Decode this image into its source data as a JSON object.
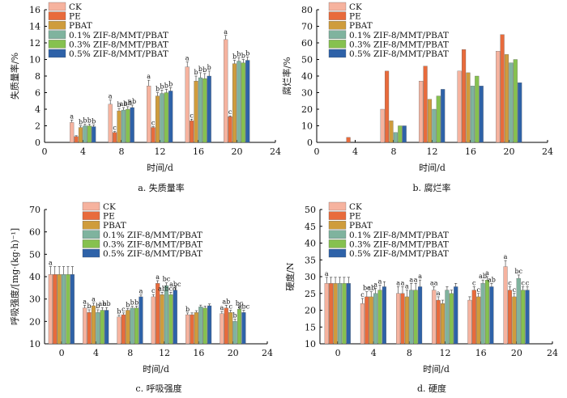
{
  "colors": {
    "CK": "#f6b39f",
    "PE": "#e86b3c",
    "PBAT": "#cf9c3c",
    "0.1% ZIF-8/MMT/PBAT": "#7fb39e",
    "0.3% ZIF-8/MMT/PBAT": "#86c14f",
    "0.5% ZIF-8/MMT/PBAT": "#2e62a8"
  },
  "chart_data": [
    {
      "type": "bar",
      "caption": "a. 失质量率",
      "xlabel": "时间/d",
      "ylabel": "失质量率/%",
      "xticks": [
        "0",
        "4",
        "8",
        "12",
        "16",
        "20",
        "24"
      ],
      "yticks": [
        "0",
        "2",
        "4",
        "6",
        "8",
        "10",
        "12",
        "14",
        "16"
      ],
      "ylim": [
        0,
        16
      ],
      "categories": [
        "4",
        "8",
        "12",
        "16",
        "20"
      ],
      "series": [
        {
          "name": "CK",
          "values": [
            2.4,
            4.6,
            6.8,
            9.1,
            12.4
          ],
          "errors": [
            0.3,
            0.5,
            0.7,
            0.6,
            0.5
          ]
        },
        {
          "name": "PE",
          "values": [
            0.7,
            1.2,
            1.8,
            2.6,
            3.1
          ],
          "errors": [
            0.1,
            0.1,
            0.1,
            0.2,
            0.1
          ]
        },
        {
          "name": "PBAT",
          "values": [
            1.8,
            3.8,
            5.6,
            7.4,
            9.5
          ],
          "errors": [
            0.2,
            0.3,
            0.4,
            0.6,
            0.4
          ]
        },
        {
          "name": "0.1% ZIF-8/MMT/PBAT",
          "values": [
            2.0,
            3.9,
            5.9,
            7.8,
            9.8
          ],
          "errors": [
            0.2,
            0.3,
            0.4,
            0.6,
            0.4
          ]
        },
        {
          "name": "0.3% ZIF-8/MMT/PBAT",
          "values": [
            2.0,
            4.0,
            6.0,
            7.7,
            9.6
          ],
          "errors": [
            0.2,
            0.3,
            0.4,
            0.6,
            0.4
          ]
        },
        {
          "name": "0.5% ZIF-8/MMT/PBAT",
          "values": [
            1.9,
            4.2,
            6.2,
            8.0,
            9.9
          ],
          "errors": [
            0.2,
            0.3,
            0.4,
            0.6,
            0.4
          ]
        }
      ],
      "letters": [
        [
          "a",
          "a",
          "a",
          "a",
          "a"
        ],
        [
          "",
          "c",
          "c",
          "c",
          "c"
        ],
        [
          "b",
          "b",
          "b",
          "b",
          "b"
        ],
        [
          "b",
          "ab",
          "b",
          "b",
          "b"
        ],
        [
          "b",
          "ab",
          "b",
          "b",
          "b"
        ],
        [
          "b",
          "ab",
          "b",
          "b",
          "b"
        ]
      ]
    },
    {
      "type": "bar",
      "caption": "b. 腐烂率",
      "xlabel": "时间/d",
      "ylabel": "腐烂率/%",
      "xticks": [
        "0",
        "4",
        "8",
        "12",
        "16",
        "20",
        "24"
      ],
      "yticks": [
        "0",
        "10",
        "20",
        "30",
        "40",
        "50",
        "60",
        "70",
        "80"
      ],
      "ylim": [
        0,
        80
      ],
      "categories": [
        "4",
        "8",
        "12",
        "16",
        "20"
      ],
      "series": [
        {
          "name": "CK",
          "values": [
            0,
            20,
            37,
            43,
            55
          ]
        },
        {
          "name": "PE",
          "values": [
            3,
            43,
            46,
            56,
            65
          ]
        },
        {
          "name": "PBAT",
          "values": [
            0,
            13,
            26,
            42,
            53
          ]
        },
        {
          "name": "0.1% ZIF-8/MMT/PBAT",
          "values": [
            0,
            6,
            20,
            34,
            48
          ]
        },
        {
          "name": "0.3% ZIF-8/MMT/PBAT",
          "values": [
            0,
            10,
            28,
            40,
            50
          ]
        },
        {
          "name": "0.5% ZIF-8/MMT/PBAT",
          "values": [
            0,
            10,
            32,
            34,
            36
          ]
        }
      ]
    },
    {
      "type": "bar",
      "caption": "c. 呼吸强度",
      "xlabel": "时间/d",
      "ylabel": "呼吸强度/[mg·(kg·h)⁻¹]",
      "xticks": [
        "0",
        "4",
        "8",
        "12",
        "16",
        "20",
        "24"
      ],
      "yticks": [
        "10",
        "20",
        "30",
        "40",
        "50",
        "60",
        "70"
      ],
      "ylim": [
        10,
        70
      ],
      "categories": [
        "0",
        "4",
        "8",
        "12",
        "16",
        "20"
      ],
      "series": [
        {
          "name": "CK",
          "values": [
            41,
            26,
            22,
            31,
            23,
            23.5
          ],
          "errors": [
            3.5,
            1.2,
            0.8,
            1.0,
            0.8,
            1.0
          ]
        },
        {
          "name": "PE",
          "values": [
            41,
            24,
            23,
            37,
            23,
            26
          ],
          "errors": [
            3.5,
            1.2,
            0.8,
            1.2,
            0.8,
            1.2
          ]
        },
        {
          "name": "PBAT",
          "values": [
            41,
            27,
            25,
            32,
            24,
            24
          ],
          "errors": [
            3.5,
            1.2,
            0.8,
            1.0,
            0.8,
            1.0
          ]
        },
        {
          "name": "0.1% ZIF-8/MMT/PBAT",
          "values": [
            41,
            24,
            26,
            36,
            26.5,
            20
          ],
          "errors": [
            3.5,
            1.2,
            0.8,
            1.2,
            0.8,
            1.0
          ]
        },
        {
          "name": "0.3% ZIF-8/MMT/PBAT",
          "values": [
            41,
            25,
            26,
            32,
            26,
            25.5
          ],
          "errors": [
            3.5,
            1.2,
            0.8,
            1.0,
            0.8,
            1.0
          ]
        },
        {
          "name": "0.5% ZIF-8/MMT/PBAT",
          "values": [
            41,
            25,
            31,
            34,
            27,
            24
          ],
          "errors": [
            3.5,
            1.2,
            0.8,
            1.0,
            0.8,
            1.0
          ]
        }
      ],
      "letters": [
        [
          "a",
          "a",
          "b",
          "c",
          "b",
          "a"
        ],
        [
          "",
          "b",
          "c",
          "a",
          "",
          "ab"
        ],
        [
          "",
          "a",
          "b",
          "ab",
          "",
          "c"
        ],
        [
          "",
          "b",
          "b",
          "bc",
          "",
          "b"
        ],
        [
          "",
          "ab",
          "b",
          "bcd",
          "",
          "bc"
        ],
        [
          "",
          "ab",
          "a",
          "abc",
          "",
          "abc"
        ]
      ]
    },
    {
      "type": "bar",
      "caption": "d. 硬度",
      "xlabel": "时间/d",
      "ylabel": "硬度/N",
      "xticks": [
        "0",
        "4",
        "8",
        "12",
        "16",
        "20",
        "24"
      ],
      "yticks": [
        "10",
        "15",
        "20",
        "25",
        "30",
        "35",
        "40",
        "45",
        "50"
      ],
      "ylim": [
        10,
        50
      ],
      "categories": [
        "0",
        "4",
        "8",
        "12",
        "16",
        "20"
      ],
      "series": [
        {
          "name": "CK",
          "values": [
            28,
            22,
            25,
            26,
            23,
            33
          ],
          "errors": [
            1.8,
            1.5,
            2.0,
            1.0,
            1.0,
            1.8
          ]
        },
        {
          "name": "PE",
          "values": [
            28,
            24,
            25,
            23,
            26,
            26
          ],
          "errors": [
            1.8,
            1.5,
            2.0,
            1.0,
            1.0,
            1.0
          ]
        },
        {
          "name": "PBAT",
          "values": [
            28,
            24,
            24,
            22,
            24,
            24
          ],
          "errors": [
            1.8,
            1.5,
            2.0,
            1.0,
            1.0,
            1.0
          ]
        },
        {
          "name": "0.1% ZIF-8/MMT/PBAT",
          "values": [
            28,
            25,
            26,
            26,
            28,
            29.5
          ],
          "errors": [
            1.8,
            1.5,
            2.0,
            1.0,
            1.0,
            1.0
          ]
        },
        {
          "name": "0.3% ZIF-8/MMT/PBAT",
          "values": [
            28,
            26,
            26,
            25,
            29,
            26
          ],
          "errors": [
            1.8,
            1.5,
            2.0,
            1.0,
            1.0,
            1.0
          ]
        },
        {
          "name": "0.5% ZIF-8/MMT/PBAT",
          "values": [
            28,
            27,
            27,
            27,
            27,
            26
          ],
          "errors": [
            1.8,
            1.5,
            2.0,
            1.0,
            1.0,
            1.0
          ]
        }
      ],
      "letters": [
        [
          "a",
          "c",
          "a",
          "aa",
          "",
          "a"
        ],
        [
          "",
          "bc",
          "a",
          "a",
          "c",
          "c"
        ],
        [
          "",
          "ab",
          "a",
          "",
          "c",
          "c"
        ],
        [
          "",
          "a",
          "a",
          "",
          "ab",
          "bc"
        ],
        [
          "",
          "a",
          "a",
          "",
          "a",
          "c"
        ],
        [
          "",
          "",
          "a",
          "",
          "ab",
          "c"
        ]
      ]
    }
  ]
}
